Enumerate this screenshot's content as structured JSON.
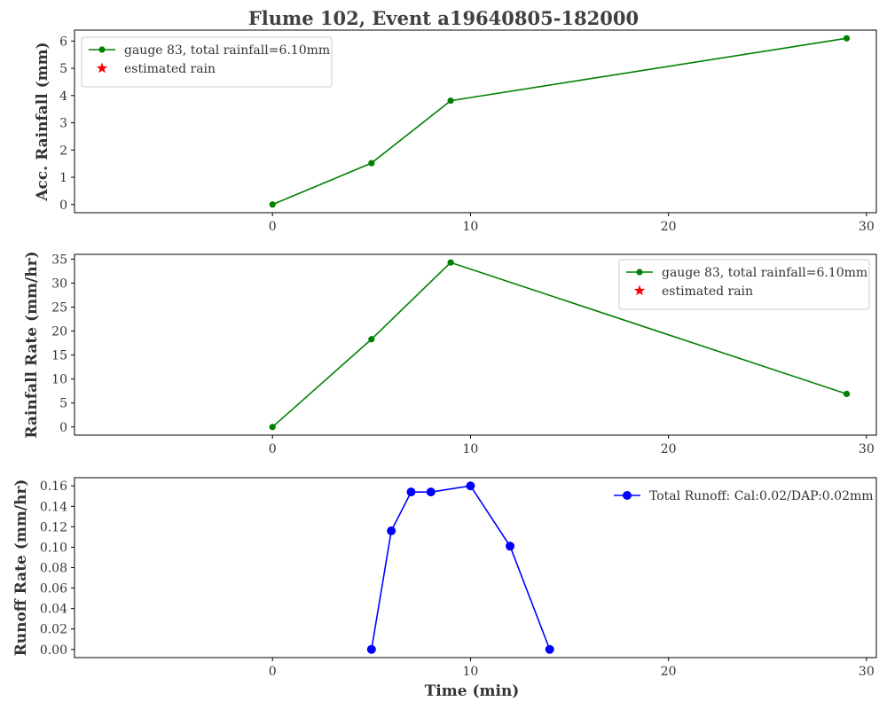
{
  "figure": {
    "title": "Flume 102, Event a19640805-182000"
  },
  "chart_data": [
    {
      "type": "line",
      "title": "",
      "xlabel": "",
      "ylabel": "Acc. Rainfall (mm)",
      "xlim": [
        -10,
        30.5
      ],
      "ylim": [
        -0.3,
        6.4
      ],
      "xticks": [
        0,
        10,
        20,
        30
      ],
      "yticks": [
        0,
        1,
        2,
        3,
        4,
        5,
        6
      ],
      "legend_position": "top-left",
      "series": [
        {
          "name": "gauge 83, total rainfall=6.10mm",
          "color": "#008000",
          "marker": "circle",
          "x": [
            0,
            5,
            9,
            29
          ],
          "y": [
            0,
            1.52,
            3.81,
            6.1
          ]
        },
        {
          "name": "estimated rain",
          "color": "#ff0000",
          "marker": "star",
          "x": [],
          "y": []
        }
      ]
    },
    {
      "type": "line",
      "title": "",
      "xlabel": "",
      "ylabel": "Rainfall Rate (mm/hr)",
      "xlim": [
        -10,
        30.5
      ],
      "ylim": [
        -1.7,
        36
      ],
      "xticks": [
        0,
        10,
        20,
        30
      ],
      "yticks": [
        0,
        5,
        10,
        15,
        20,
        25,
        30,
        35
      ],
      "legend_position": "top-right",
      "series": [
        {
          "name": "gauge 83, total rainfall=6.10mm",
          "color": "#008000",
          "marker": "circle",
          "x": [
            0,
            5,
            9,
            29
          ],
          "y": [
            0,
            18.3,
            34.3,
            6.9
          ]
        },
        {
          "name": "estimated rain",
          "color": "#ff0000",
          "marker": "star",
          "x": [],
          "y": []
        }
      ]
    },
    {
      "type": "line",
      "title": "",
      "xlabel": "Time (min)",
      "ylabel": "Runoff Rate (mm/hr)",
      "xlim": [
        -10,
        30.5
      ],
      "ylim": [
        -0.008,
        0.168
      ],
      "xticks": [
        0,
        10,
        20,
        30
      ],
      "yticks": [
        0.0,
        0.02,
        0.04,
        0.06,
        0.08,
        0.1,
        0.12,
        0.14,
        0.16
      ],
      "ytick_decimals": 2,
      "legend_position": "top-right",
      "series": [
        {
          "name": "Total Runoff: Cal:0.02/DAP:0.02mm",
          "color": "#0000ff",
          "marker": "circle-large",
          "x": [
            5,
            6,
            7,
            8,
            10,
            12,
            14
          ],
          "y": [
            0,
            0.116,
            0.154,
            0.154,
            0.16,
            0.101,
            0
          ]
        }
      ]
    }
  ]
}
